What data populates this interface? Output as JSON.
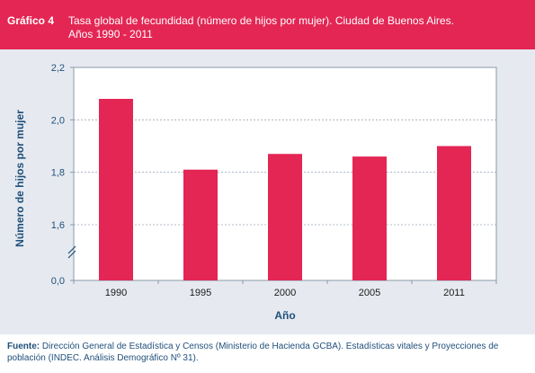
{
  "header": {
    "label": "Gráfico 4",
    "title_line1": "Tasa global de fecundidad (número de hijos por mujer). Ciudad de Buenos Aires.",
    "title_line2": "Años 1990 - 2011"
  },
  "chart_data": {
    "type": "bar",
    "categories": [
      "1990",
      "1995",
      "2000",
      "2005",
      "2011"
    ],
    "values": [
      2.08,
      1.81,
      1.87,
      1.86,
      1.9
    ],
    "xlabel": "Año",
    "ylabel": "Número de hijos por mujer",
    "ylim": [
      1.6,
      2.2
    ],
    "yticks": [
      "2,2",
      "2,0",
      "1,8",
      "1,6"
    ],
    "y_zero_tick": "0,0",
    "axis_break": true,
    "grid": true,
    "colors": {
      "bar": "#e32654",
      "background": "#e6eaf0",
      "header": "#e32654",
      "axis_text": "#1f4f7a"
    }
  },
  "footer": {
    "source_label": "Fuente:",
    "source_text": "Dirección General de Estadística y Censos (Ministerio de Hacienda GCBA). Estadísticas vitales y Proyecciones de población (INDEC. Análisis Demográfico Nº 31)."
  }
}
